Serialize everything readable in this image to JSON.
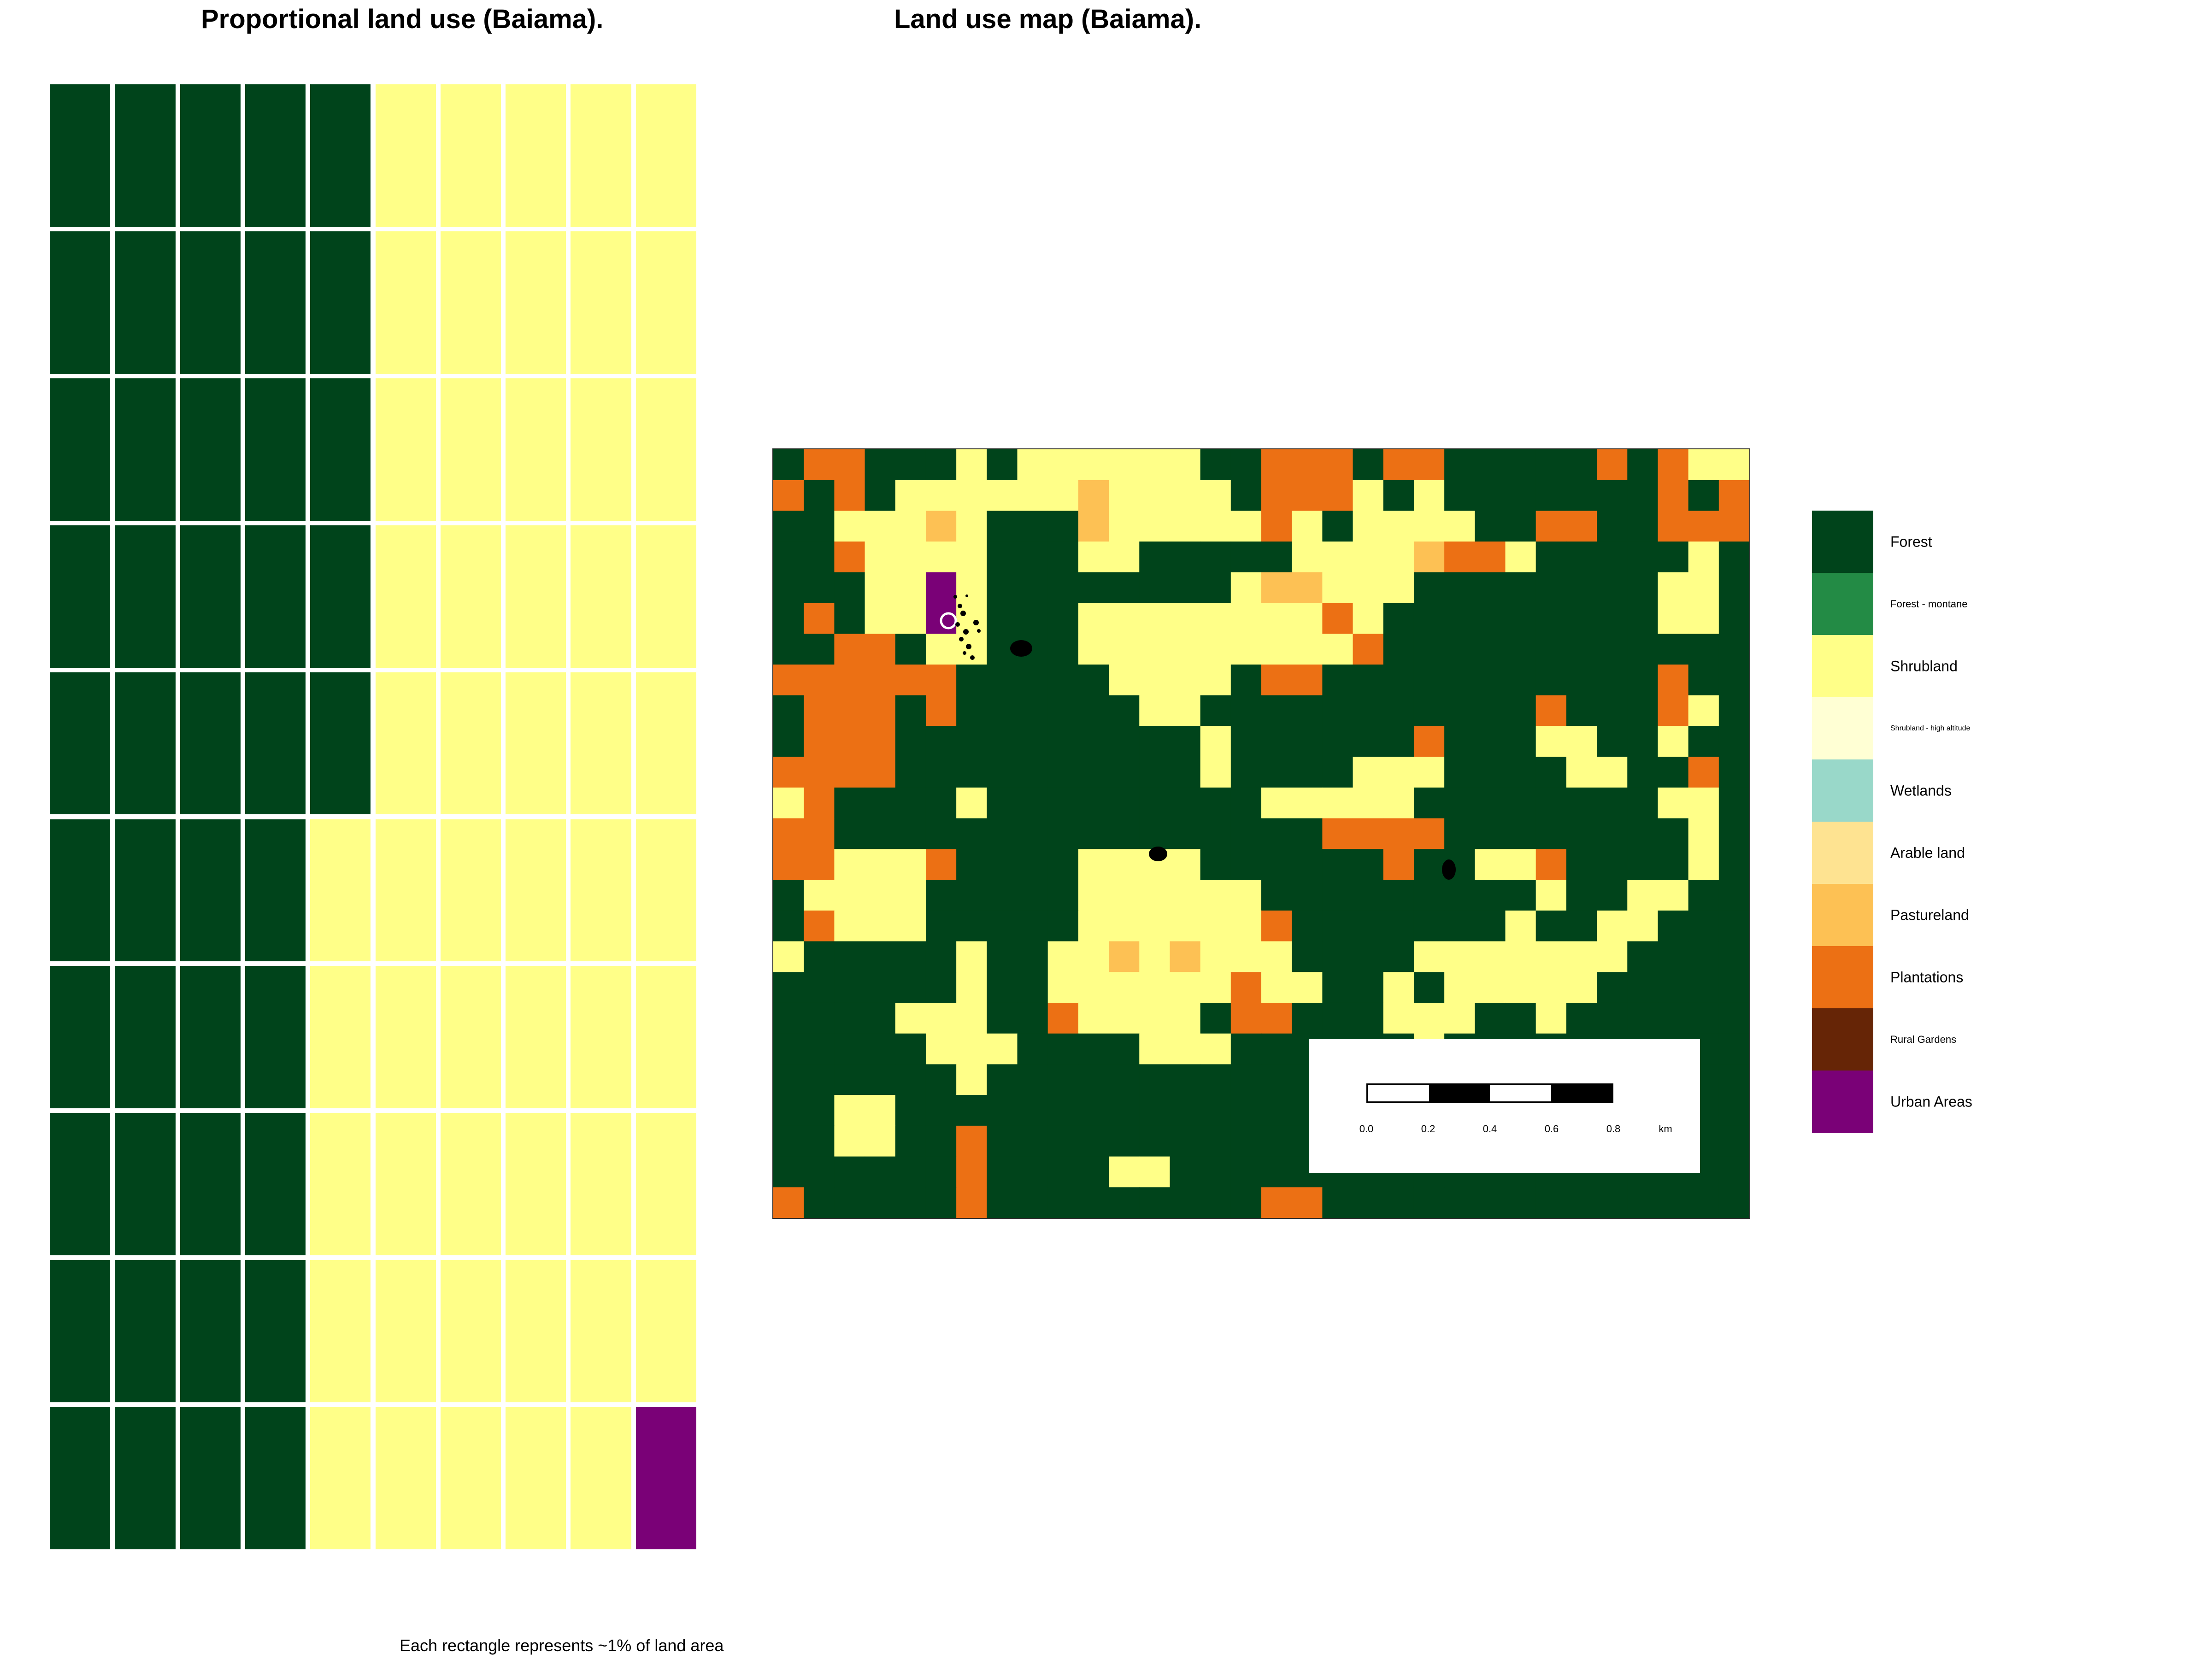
{
  "waffle": {
    "title": "Proportional land use (Baiama).",
    "caption": "Each rectangle represents ~1% of land area",
    "categories": [
      {
        "name": "Forest",
        "percent": 45,
        "color": "#00441b"
      },
      {
        "name": "Shrubland",
        "percent": 54,
        "color": "#ffff88"
      },
      {
        "name": "Urban Areas",
        "percent": 1,
        "color": "#7a0177"
      }
    ]
  },
  "map": {
    "title": "Land use map (Baiama).",
    "scalebar": {
      "unit": "km",
      "ticks": [
        "0.0",
        "0.2",
        "0.4",
        "0.6",
        "0.8"
      ]
    },
    "legend": [
      {
        "label": "Forest",
        "color": "#00441b",
        "size": "large"
      },
      {
        "label": "Forest - montane",
        "color": "#238b45",
        "size": "small"
      },
      {
        "label": "Shrubland",
        "color": "#ffff88",
        "size": "large"
      },
      {
        "label": "Shrubland - high altitude",
        "color": "#ffffd4",
        "size": "tiny"
      },
      {
        "label": "Wetlands",
        "color": "#99d8c9",
        "size": "large"
      },
      {
        "label": "Arable land",
        "color": "#fee391",
        "size": "large"
      },
      {
        "label": "Pastureland",
        "color": "#fdc154",
        "size": "large"
      },
      {
        "label": "Plantations",
        "color": "#ec7014",
        "size": "large"
      },
      {
        "label": "Rural Gardens",
        "color": "#662506",
        "size": "small"
      },
      {
        "label": "Urban Areas",
        "color": "#7a0177",
        "size": "large"
      }
    ],
    "grid_codes": "F=Forest, S=Shrubland, P=Pastureland, O=Plantations, U=Urban Areas",
    "grid": [
      "FOOFFFSFSSSSSSFFOOOFOOFFFFFOFOSS",
      "OFOFSSSSSSPSSSSFOOOSFSFFFFFFFOFOO",
      "FFSSSPSFFFPSSSSSOSFSSSSFFOOFFOOOS",
      "FFOSSSSFFFSSFFFFFSSSSPOOSFFFFFSFS",
      "FFFSSUSFFFFFFFFSPPSSSFFFFFFFFSSFF",
      "FOFSSUSFFFSSSSSSSSOSFFFFFFFFFSSFF",
      "FFOOFSSFFFSSSSSSSSSOFFFFFFFFFFFFF",
      "OOOOOOFFFFFSSSSFOOFFFFFFFFFFFOFFF",
      "FOOOFOFFFFFFSSFFFFFFFFFFFOFFFOSF",
      "FOOOFFFFFFFFFFSFFFFFFOFFFSSFFSFFF",
      "OOOOFFFFFFFFFFSFFFFSSSFFFFSSFFOFF",
      "SOFFFFSFFFFFFFFFSSSSSFFFFFFFFSSFSF",
      "OOFFFFFFFFFFFFFFFFOOOOFFFFFFFFSFFF",
      "OOSSSOFFFFSSSSFFFFFFOFFSSOFFFFSFFFO",
      "FSSSSFFFFFSSSSSSFFFFFFFFFSFFSSFFFFF",
      "FOSSSFFFFFSSSSSSOFFFFFFFSFFSSFFFFF",
      "SFFFFFSFFSSPSPSSSFFFFSSSSSSSFFFFFF",
      "FFFFFFSFFSSSSSSOSSFFSFSSSSSFFFFFFF",
      "FFFFSSSFFOSSSSFOOFFFSSSFFSFFFFFFFF",
      "FFFFFSSSFFFFSSSFFFFFFSFFFFFFFFFFFF",
      "FFFFFFSFFFFFFFFFFFFFFSFFFFFFFFFFFF",
      "FFSSFFFFFFFFFFFFFFFFFFFFFFFFFFFFFF",
      "FFSSFFOFFFFFFFFFFFFFFOFFFFFFFFFFFF",
      "FFFFFFOFFFFSSFFFFFFFFFFFFFFFFFFFFF",
      "OFFFFFOFFFFFFFFFOOFFFFFFFFFFFFFFFF"
    ]
  }
}
